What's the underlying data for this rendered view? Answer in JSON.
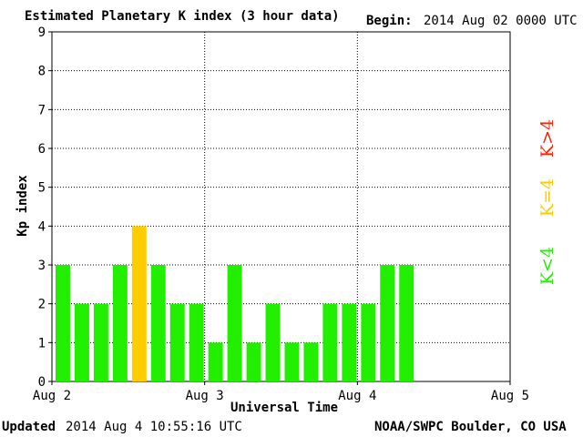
{
  "header": {
    "title": "Estimated Planetary K index (3 hour data)",
    "begin_label": "Begin:",
    "begin_value": "2014 Aug 02 0000 UTC"
  },
  "footer": {
    "updated_label": "Updated",
    "updated_value": "2014 Aug  4 10:55:16 UTC",
    "source": "NOAA/SWPC Boulder, CO USA"
  },
  "legend": {
    "below": "K<4",
    "equal": "K=4",
    "above": "K>4"
  },
  "colors": {
    "below": "#22ee00",
    "equal": "#ffcc00",
    "above": "#ff2200",
    "axis": "#000000"
  },
  "chart_data": {
    "type": "bar",
    "title": "Estimated Planetary K index (3 hour data)",
    "xlabel": "Universal Time",
    "ylabel": "Kp index",
    "ylim": [
      0,
      9
    ],
    "yticks": [
      "0",
      "1",
      "2",
      "3",
      "4",
      "5",
      "6",
      "7",
      "8",
      "9"
    ],
    "xticks": [
      "Aug 2",
      "Aug 3",
      "Aug 4",
      "Aug 5"
    ],
    "grid": true,
    "interval_hours": 3,
    "values": [
      3,
      2,
      2,
      3,
      4,
      3,
      2,
      2,
      1,
      3,
      1,
      2,
      1,
      1,
      2,
      2,
      2,
      3,
      3
    ]
  }
}
